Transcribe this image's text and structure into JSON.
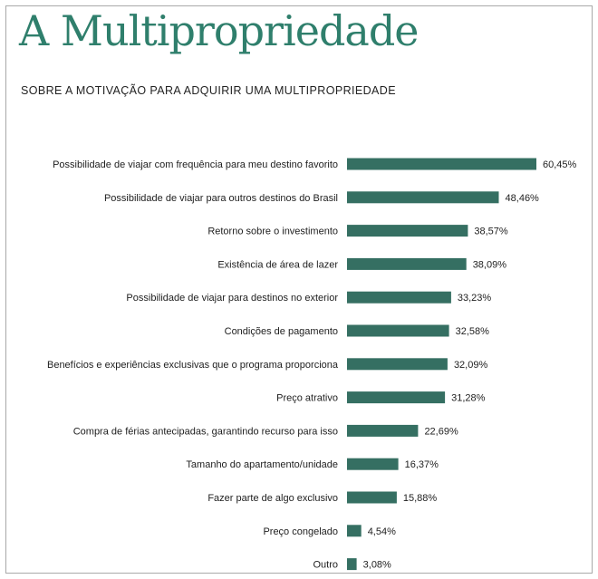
{
  "title": "A Multipropriedade",
  "subtitle": "SOBRE A MOTIVAÇÃO PARA ADQUIRIR UMA MULTIPROPRIEDADE",
  "bar_color": "#356f62",
  "chart_data": {
    "type": "bar",
    "orientation": "horizontal",
    "categories": [
      "Possibilidade de viajar com frequência para meu destino favorito",
      "Possibilidade de viajar para outros destinos do Brasil",
      "Retorno sobre o investimento",
      "Existência de área de lazer",
      "Possibilidade de viajar para destinos no exterior",
      "Condições de pagamento",
      "Benefícios e experiências exclusivas que o programa proporciona",
      "Preço atrativo",
      "Compra de férias antecipadas, garantindo recurso para isso",
      "Tamanho do apartamento/unidade",
      "Fazer parte de algo exclusivo",
      "Preço congelado",
      "Outro"
    ],
    "values": [
      60.45,
      48.46,
      38.57,
      38.09,
      33.23,
      32.58,
      32.09,
      31.28,
      22.69,
      16.37,
      15.88,
      4.54,
      3.08
    ],
    "value_labels": [
      "60,45%",
      "48,46%",
      "38,57%",
      "38,09%",
      "33,23%",
      "32,58%",
      "32,09%",
      "31,28%",
      "22,69%",
      "16,37%",
      "15,88%",
      "4,54%",
      "3,08%"
    ],
    "xlim": [
      0,
      60.45
    ],
    "grid": false,
    "legend": false
  }
}
